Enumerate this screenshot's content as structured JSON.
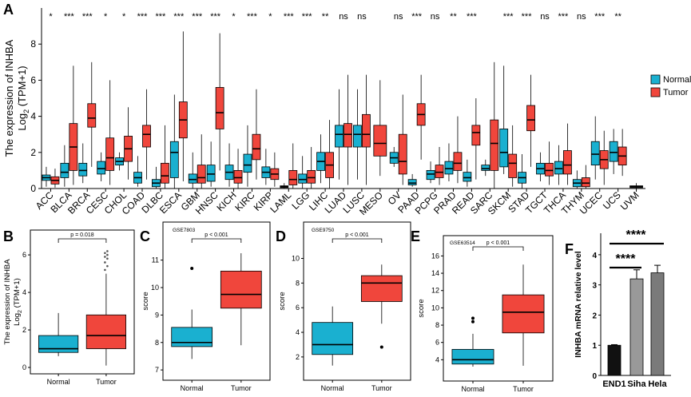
{
  "chart_data": [
    {
      "panel": "A",
      "type": "boxplot",
      "ylabel_line1": "The expression of INHBA",
      "ylabel_line2": "Log",
      "ylabel_sub": "2",
      "ylabel_line2_tail": " (TPM+1)",
      "ylim": [
        0,
        10
      ],
      "yticks": [
        "0",
        "2",
        "4",
        "6",
        "8"
      ],
      "legend": [
        {
          "name": "Normal",
          "color": "#1ab0d0"
        },
        {
          "name": "Tumor",
          "color": "#f0463c"
        }
      ],
      "categories": [
        {
          "label": "ACC",
          "sig": "*",
          "normal": [
            0.1,
            0.45,
            0.6,
            0.75,
            1.2
          ],
          "tumor": [
            0.05,
            0.25,
            0.45,
            0.65,
            1.1
          ]
        },
        {
          "label": "BLCA",
          "sig": "***",
          "normal": [
            0.1,
            0.6,
            0.9,
            1.4,
            2.4
          ],
          "tumor": [
            0.2,
            1.0,
            2.3,
            3.6,
            6.8
          ]
        },
        {
          "label": "BRCA",
          "sig": "***",
          "normal": [
            0.3,
            0.7,
            1.0,
            1.4,
            2.5
          ],
          "tumor": [
            1.2,
            3.4,
            3.9,
            4.7,
            7.0
          ]
        },
        {
          "label": "CESC",
          "sig": "*",
          "normal": [
            0.4,
            0.8,
            1.1,
            1.5,
            2.0
          ],
          "tumor": [
            0.2,
            1.0,
            1.7,
            2.8,
            6.0
          ]
        },
        {
          "label": "CHOL",
          "sig": "*",
          "normal": [
            1.0,
            1.3,
            1.5,
            1.7,
            2.0
          ],
          "tumor": [
            0.5,
            1.5,
            2.2,
            2.9,
            4.5
          ]
        },
        {
          "label": "COAD",
          "sig": "***",
          "normal": [
            0.1,
            0.3,
            0.6,
            0.9,
            1.8
          ],
          "tumor": [
            0.5,
            2.3,
            3.0,
            3.5,
            5.5
          ]
        },
        {
          "label": "DLBC",
          "sig": "***",
          "normal": [
            0.0,
            0.1,
            0.3,
            0.5,
            1.2
          ],
          "tumor": [
            0.0,
            0.3,
            0.7,
            1.4,
            3.5
          ]
        },
        {
          "label": "ESCA",
          "sig": "***",
          "normal": [
            0.0,
            0.6,
            2.0,
            2.6,
            5.2
          ],
          "tumor": [
            0.4,
            2.8,
            3.8,
            4.8,
            8.7
          ]
        },
        {
          "label": "GBM",
          "sig": "***",
          "normal": [
            0.0,
            0.3,
            0.5,
            0.8,
            2.0
          ],
          "tumor": [
            0.0,
            0.3,
            0.6,
            1.3,
            3.0
          ]
        },
        {
          "label": "HNSC",
          "sig": "***",
          "normal": [
            0.1,
            0.4,
            0.8,
            1.3,
            2.6
          ],
          "tumor": [
            1.0,
            3.3,
            4.2,
            5.6,
            8.6
          ]
        },
        {
          "label": "KICH",
          "sig": "*",
          "normal": [
            0.1,
            0.5,
            0.9,
            1.3,
            2.5
          ],
          "tumor": [
            0.0,
            0.3,
            0.6,
            1.0,
            2.2
          ]
        },
        {
          "label": "KIRC",
          "sig": "***",
          "normal": [
            0.1,
            0.9,
            1.3,
            1.9,
            3.5
          ],
          "tumor": [
            0.5,
            1.6,
            2.2,
            3.0,
            5.5
          ]
        },
        {
          "label": "KIRP",
          "sig": "*",
          "normal": [
            0.2,
            0.6,
            0.9,
            1.2,
            2.2
          ],
          "tumor": [
            0.1,
            0.5,
            0.8,
            1.1,
            2.0
          ]
        },
        {
          "label": "LAML",
          "sig": "***",
          "normal": [
            0.0,
            0.05,
            0.1,
            0.15,
            0.3
          ],
          "tumor": [
            0.0,
            0.2,
            0.5,
            1.0,
            2.5
          ]
        },
        {
          "label": "LGG",
          "sig": "***",
          "normal": [
            0.0,
            0.3,
            0.5,
            0.8,
            1.8
          ],
          "tumor": [
            0.0,
            0.3,
            0.6,
            1.0,
            2.3
          ]
        },
        {
          "label": "LIHC",
          "sig": "**",
          "normal": [
            0.3,
            1.0,
            1.5,
            2.0,
            3.0
          ],
          "tumor": [
            0.0,
            0.6,
            1.3,
            2.0,
            3.8
          ]
        },
        {
          "label": "LUAD",
          "sig": "ns",
          "normal": [
            0.5,
            2.3,
            3.0,
            3.5,
            5.5
          ],
          "tumor": [
            0.2,
            2.3,
            3.0,
            3.6,
            6.3
          ]
        },
        {
          "label": "LUSC",
          "sig": "ns",
          "normal": [
            0.5,
            2.3,
            3.0,
            3.5,
            5.5
          ],
          "tumor": [
            0.2,
            2.3,
            3.0,
            4.1,
            6.3
          ]
        },
        {
          "label": "MESO",
          "sig": "",
          "normal": null,
          "tumor": [
            0.7,
            1.8,
            2.5,
            3.5,
            6.0
          ]
        },
        {
          "label": "OV",
          "sig": "ns",
          "normal": [
            1.2,
            1.4,
            1.7,
            2.0,
            2.3
          ],
          "tumor": [
            0.2,
            0.8,
            1.5,
            3.0,
            5.2
          ]
        },
        {
          "label": "PAAD",
          "sig": "***",
          "normal": [
            0.1,
            0.2,
            0.3,
            0.5,
            0.8
          ],
          "tumor": [
            1.6,
            3.5,
            4.1,
            4.7,
            6.3
          ]
        },
        {
          "label": "PCPG",
          "sig": "ns",
          "normal": [
            0.3,
            0.5,
            0.8,
            1.0,
            1.5
          ],
          "tumor": [
            0.2,
            0.6,
            0.9,
            1.3,
            2.3
          ]
        },
        {
          "label": "PRAD",
          "sig": "**",
          "normal": [
            0.4,
            0.8,
            1.1,
            1.5,
            2.5
          ],
          "tumor": [
            0.3,
            1.0,
            1.4,
            2.0,
            4.0
          ]
        },
        {
          "label": "READ",
          "sig": "***",
          "normal": [
            0.1,
            0.4,
            0.6,
            0.9,
            1.6
          ],
          "tumor": [
            0.5,
            2.4,
            3.1,
            3.5,
            5.0
          ]
        },
        {
          "label": "SARC",
          "sig": "",
          "normal": [
            0.7,
            1.0,
            1.1,
            1.3,
            1.6
          ],
          "tumor": [
            0.0,
            1.0,
            2.5,
            3.8,
            7.0
          ]
        },
        {
          "label": "SKCM",
          "sig": "***",
          "normal": [
            0.8,
            1.2,
            2.0,
            3.3,
            6.8
          ],
          "tumor": [
            0.1,
            0.6,
            1.4,
            1.9,
            3.5
          ]
        },
        {
          "label": "STAD",
          "sig": "***",
          "normal": [
            0.0,
            0.3,
            0.6,
            0.9,
            1.9
          ],
          "tumor": [
            1.2,
            3.2,
            3.8,
            4.6,
            6.3
          ]
        },
        {
          "label": "TGCT",
          "sig": "ns",
          "normal": [
            0.4,
            0.8,
            1.1,
            1.4,
            2.0
          ],
          "tumor": [
            0.2,
            0.7,
            1.0,
            1.4,
            2.6
          ]
        },
        {
          "label": "THCA",
          "sig": "***",
          "normal": [
            0.2,
            0.8,
            1.1,
            1.5,
            2.4
          ],
          "tumor": [
            0.2,
            0.8,
            1.3,
            2.1,
            3.6
          ]
        },
        {
          "label": "THYM",
          "sig": "ns",
          "normal": [
            0.0,
            0.1,
            0.3,
            0.5,
            1.0
          ],
          "tumor": [
            0.0,
            0.1,
            0.3,
            0.6,
            1.3
          ]
        },
        {
          "label": "UCEC",
          "sig": "***",
          "normal": [
            0.5,
            1.3,
            1.9,
            2.6,
            4.0
          ],
          "tumor": [
            0.2,
            1.1,
            1.6,
            2.1,
            3.2
          ]
        },
        {
          "label": "UCS",
          "sig": "**",
          "normal": [
            0.8,
            1.5,
            2.0,
            2.6,
            3.3
          ],
          "tumor": [
            0.7,
            1.3,
            1.8,
            2.3,
            3.3
          ]
        },
        {
          "label": "UVM",
          "sig": "",
          "normal": null,
          "tumor": [
            0.0,
            0.05,
            0.1,
            0.15,
            0.3
          ]
        }
      ]
    },
    {
      "panel": "B",
      "type": "boxplot",
      "ylabel_line1": "The expression of INHBA",
      "ylabel_line2": "Log",
      "ylabel_sub": "2",
      "ylabel_line2_tail": " (TPM+1)",
      "ylim": [
        0,
        6.6
      ],
      "yticks": [
        "0",
        "2",
        "4",
        "6"
      ],
      "categories": [
        "Normal",
        "Tumor"
      ],
      "boxes": [
        [
          0.6,
          0.8,
          1.0,
          1.7,
          2.9
        ],
        [
          0.1,
          1.0,
          1.7,
          2.8,
          5.0
        ]
      ],
      "pvalue": "p = 0.018"
    },
    {
      "panel": "C",
      "type": "boxplot",
      "dataset": "GSE7803",
      "ylabel": "score",
      "ylim": [
        6.8,
        11.6
      ],
      "yticks": [
        "7",
        "8",
        "9",
        "10",
        "11"
      ],
      "categories": [
        "Normal",
        "Tumor"
      ],
      "boxes": [
        [
          7.4,
          7.85,
          8.0,
          8.55,
          9.2
        ],
        [
          7.9,
          9.25,
          9.75,
          10.6,
          11.25
        ]
      ],
      "outliers": [
        [
          10.7
        ],
        []
      ],
      "pvalue": "p < 0.001"
    },
    {
      "panel": "D",
      "type": "boxplot",
      "dataset": "GSE9750",
      "ylabel": "score",
      "ylim": [
        0.5,
        11.2
      ],
      "yticks": [
        "2",
        "4",
        "6",
        "8",
        "10"
      ],
      "categories": [
        "Normal",
        "Tumor"
      ],
      "boxes": [
        [
          1.3,
          2.2,
          3.0,
          4.8,
          6.1
        ],
        [
          4.7,
          6.5,
          8.0,
          8.6,
          9.5
        ]
      ],
      "outliers": [
        [],
        [
          2.8
        ]
      ],
      "pvalue": "p < 0.001"
    },
    {
      "panel": "E",
      "type": "boxplot",
      "dataset": "GSE63514",
      "ylabel": "score",
      "ylim": [
        2.0,
        16.5
      ],
      "yticks": [
        "4",
        "6",
        "8",
        "10",
        "12",
        "14",
        "16"
      ],
      "categories": [
        "Normal",
        "Tumor"
      ],
      "boxes": [
        [
          3.2,
          3.5,
          4.0,
          5.2,
          7.0
        ],
        [
          3.3,
          7.1,
          9.5,
          11.5,
          15.0
        ]
      ],
      "outliers": [
        [
          8.8,
          8.4
        ],
        []
      ],
      "pvalue": "p < 0.001"
    },
    {
      "panel": "F",
      "type": "bar",
      "ylabel": "INHBA mRNA relative level",
      "ylim": [
        0,
        4.5
      ],
      "yticks": [
        "0",
        "1",
        "2",
        "3",
        "4"
      ],
      "categories": [
        "END1",
        "Siha",
        "Hela"
      ],
      "values": [
        1.0,
        3.2,
        3.4
      ],
      "errors": [
        0.02,
        0.3,
        0.25
      ],
      "colors": [
        "#111111",
        "#999999",
        "#7a7a7a"
      ],
      "significance": [
        "****",
        "****"
      ]
    }
  ]
}
